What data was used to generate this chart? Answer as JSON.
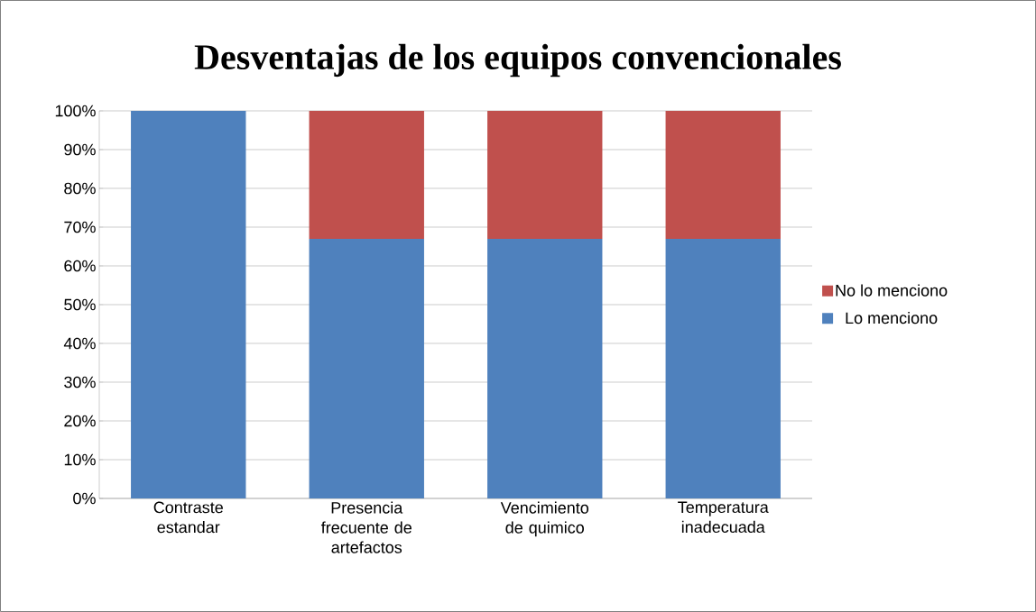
{
  "chart_data": {
    "type": "bar",
    "title": "Desventajas de los equipos convencionales",
    "categories": [
      "Contraste estandar",
      "Presencia frecuente de artefactos",
      "Vencimiento de quimico",
      "Temperatura inadecuada"
    ],
    "series": [
      {
        "name": "Lo menciono",
        "color": "#4f81bd",
        "values": [
          100,
          67,
          67,
          67
        ]
      },
      {
        "name": "No lo menciono",
        "color": "#c0504d",
        "values": [
          0,
          33,
          33,
          33
        ]
      }
    ],
    "stacked": true,
    "ylim": [
      0,
      100
    ],
    "yticks": [
      {
        "value": 0,
        "label": "0%"
      },
      {
        "value": 10,
        "label": "10%"
      },
      {
        "value": 20,
        "label": "20%"
      },
      {
        "value": 30,
        "label": "30%"
      },
      {
        "value": 40,
        "label": "40%"
      },
      {
        "value": 50,
        "label": "50%"
      },
      {
        "value": 60,
        "label": "60%"
      },
      {
        "value": 70,
        "label": "70%"
      },
      {
        "value": 80,
        "label": "80%"
      },
      {
        "value": 90,
        "label": "90%"
      },
      {
        "value": 100,
        "label": "100%"
      }
    ],
    "grid": "y",
    "legend": "right"
  }
}
